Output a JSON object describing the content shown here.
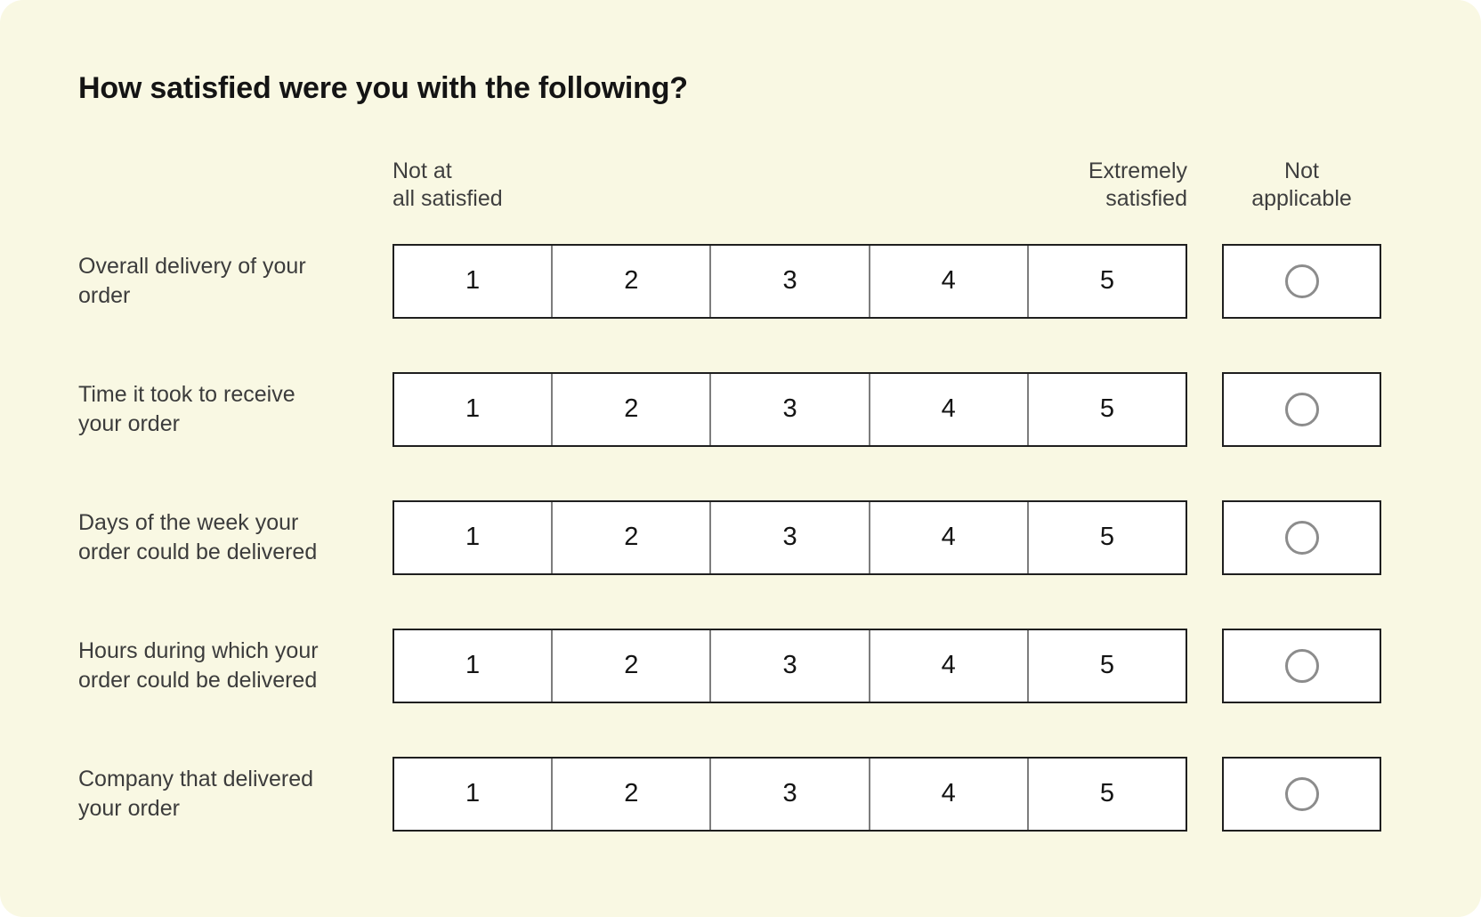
{
  "colors": {
    "page_background": "#ffffff",
    "card_background": "#f9f8e3",
    "cell_background": "#ffffff",
    "outer_border": "#1f1f1f",
    "divider": "#7d7d7d",
    "radio_border": "#8c8c8c",
    "title_text": "#141414",
    "label_text": "#3c3c3c"
  },
  "question": {
    "title": "How satisfied were you with the following?"
  },
  "scale_header": {
    "left": "Not at\nall satisfied",
    "right": "Extremely\nsatisfied",
    "na": "Not\napplicable"
  },
  "scale": {
    "values": [
      "1",
      "2",
      "3",
      "4",
      "5"
    ]
  },
  "rows": [
    {
      "label": "Overall delivery of your\norder"
    },
    {
      "label": "Time it took to receive\nyour order"
    },
    {
      "label": "Days of the week your\norder could be delivered"
    },
    {
      "label": "Hours during which your\norder could be delivered"
    },
    {
      "label": "Company that delivered\nyour order"
    }
  ]
}
